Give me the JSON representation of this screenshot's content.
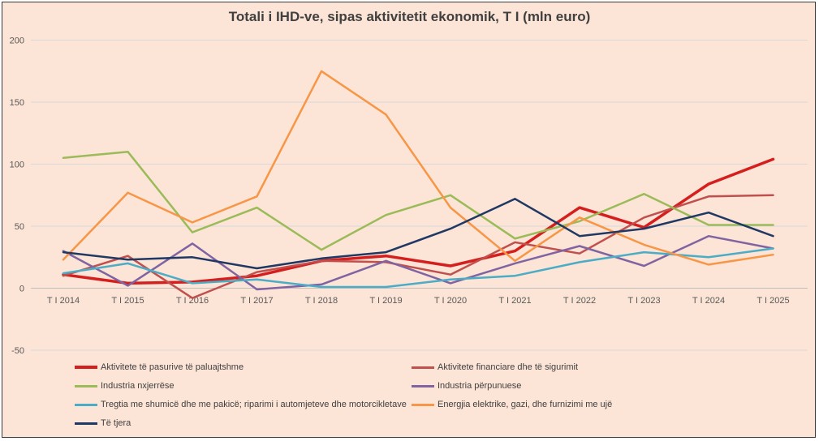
{
  "chart_data": {
    "type": "line",
    "title": "Totali i IHD-ve, sipas aktivitetit ekonomik, T I (mln euro)",
    "xlabel": "",
    "ylabel": "",
    "ylim": [
      -50,
      200
    ],
    "yticks": [
      200,
      150,
      100,
      50,
      0,
      -50
    ],
    "grid": true,
    "legend_position": "bottom",
    "categories": [
      "T I 2014",
      "T I 2015",
      "T I 2016",
      "T I 2017",
      "T I 2018",
      "T I 2019",
      "T I 2020",
      "T I 2021",
      "T I 2022",
      "T I 2023",
      "T I 2024",
      "T I 2025"
    ],
    "series": [
      {
        "name": "Aktivitete të pasurive të paluajtshme",
        "color": "#d51f1f",
        "width": 3.5,
        "values": [
          11,
          4,
          5,
          10,
          22,
          26,
          18,
          30,
          65,
          49,
          84,
          104
        ]
      },
      {
        "name": "Aktivitete financiare dhe të sigurimit",
        "color": "#c0504d",
        "width": 2.5,
        "values": [
          10,
          26,
          -8,
          13,
          22,
          21,
          11,
          37,
          28,
          57,
          74,
          75
        ]
      },
      {
        "name": "Industria nxjerrëse",
        "color": "#9bbb59",
        "width": 2.5,
        "values": [
          105,
          110,
          45,
          65,
          31,
          59,
          75,
          40,
          54,
          76,
          51,
          51
        ]
      },
      {
        "name": "Industria përpunuese",
        "color": "#8064a2",
        "width": 2.5,
        "values": [
          30,
          2,
          36,
          -1,
          3,
          22,
          4,
          20,
          34,
          18,
          42,
          32
        ]
      },
      {
        "name": "Tregtia me shumicë dhe me pakicë; riparimi i automjeteve dhe motorcikletave",
        "color": "#4bacc6",
        "width": 2.5,
        "values": [
          12,
          20,
          4,
          7,
          1,
          1,
          7,
          10,
          21,
          29,
          25,
          32
        ]
      },
      {
        "name": "Energjia elektrike, gazi, dhe furnizimi me ujë",
        "color": "#f79646",
        "width": 2.5,
        "values": [
          23,
          77,
          53,
          74,
          175,
          140,
          65,
          22,
          57,
          35,
          19,
          27
        ]
      },
      {
        "name": "Të tjera",
        "color": "#1f3864",
        "width": 2.5,
        "values": [
          29,
          23,
          25,
          16,
          24,
          29,
          48,
          72,
          42,
          48,
          61,
          42
        ]
      }
    ]
  }
}
